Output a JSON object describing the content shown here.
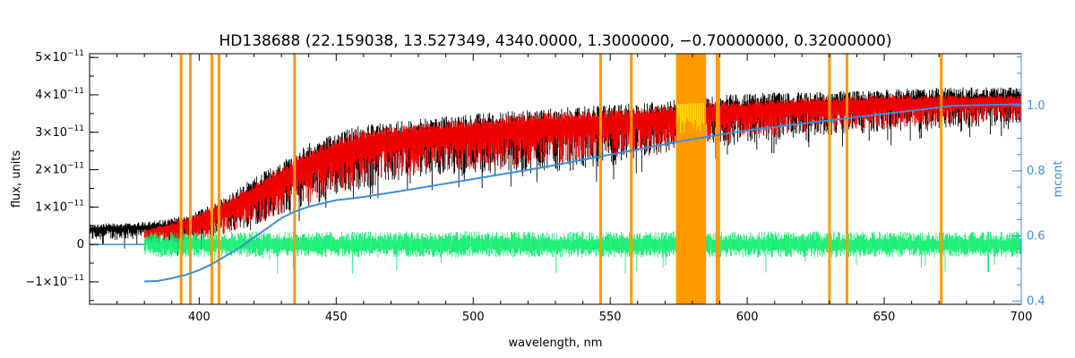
{
  "chart_data": {
    "type": "line",
    "title": "HD138688    (22.159038, 13.527349, 4340.0000, 1.3000000, −0.70000000, 0.32000000)",
    "xlabel": "wavelength, nm",
    "ylabel": "flux, units",
    "y2label": "mcont",
    "xlim": [
      360,
      700
    ],
    "ylim": [
      -1.6e-11,
      5.1e-11
    ],
    "y2lim": [
      0.39,
      1.16
    ],
    "x_ticks": [
      400,
      450,
      500,
      550,
      600,
      650,
      700
    ],
    "x_tick_labels": [
      "400",
      "450",
      "500",
      "550",
      "600",
      "650",
      "700"
    ],
    "y_ticks": [
      -1e-11,
      0,
      1e-11,
      2e-11,
      3e-11,
      4e-11,
      5e-11
    ],
    "y_tick_labels": [
      {
        "base": "−1×10",
        "exp": "−11"
      },
      {
        "base": "0",
        "exp": ""
      },
      {
        "base": "1×10",
        "exp": "−11"
      },
      {
        "base": "2×10",
        "exp": "−11"
      },
      {
        "base": "3×10",
        "exp": "−11"
      },
      {
        "base": "4×10",
        "exp": "−11"
      },
      {
        "base": "5×10",
        "exp": "−11"
      }
    ],
    "y2_ticks": [
      0.4,
      0.6,
      0.8,
      1.0
    ],
    "y2_tick_labels": [
      "0.4",
      "0.6",
      "0.8",
      "1.0"
    ],
    "colors": {
      "observed": "#000000",
      "model": "#ff0000",
      "residual": "#00ee66",
      "continuum": "#3b8fd8",
      "mask": "#ff9900",
      "highlight": "#ffff00"
    },
    "mask_lines": [
      393.4,
      396.8,
      404.6,
      407.2,
      434.8,
      546.5,
      557.7,
      588.99,
      589.59,
      630.0,
      636.4,
      670.8
    ],
    "mask_band": [
      574,
      585
    ],
    "observed_envelope": {
      "x": [
        360,
        380,
        390,
        400,
        410,
        420,
        430,
        440,
        450,
        460,
        480,
        500,
        520,
        550,
        575,
        600,
        625,
        650,
        675,
        700
      ],
      "upper": [
        5.5e-12,
        6e-12,
        7e-12,
        9e-12,
        1.3e-11,
        1.8e-11,
        2.2e-11,
        2.7e-11,
        3e-11,
        3.2e-11,
        3.35e-11,
        3.5e-11,
        3.6e-11,
        3.75e-11,
        3.9e-11,
        4.05e-11,
        4.1e-11,
        4.15e-11,
        4.2e-11,
        4.2e-11
      ],
      "lower": [
        1e-12,
        1.5e-12,
        5e-13,
        1e-12,
        3e-12,
        5e-12,
        8e-12,
        1e-11,
        1.3e-11,
        1.5e-11,
        1.8e-11,
        1.9e-11,
        1.9e-11,
        2.1e-11,
        2.5e-11,
        2.7e-11,
        2.9e-11,
        3e-11,
        3.1e-11,
        3.2e-11
      ]
    },
    "model_envelope": {
      "x": [
        380,
        390,
        400,
        410,
        420,
        430,
        440,
        450,
        460,
        480,
        500,
        520,
        550,
        575,
        600,
        625,
        650,
        675,
        700
      ],
      "upper": [
        4e-12,
        6e-12,
        8.5e-12,
        1.2e-11,
        1.6e-11,
        2.1e-11,
        2.55e-11,
        2.85e-11,
        3.05e-11,
        3.25e-11,
        3.35e-11,
        3.5e-11,
        3.6e-11,
        3.75e-11,
        3.85e-11,
        3.95e-11,
        4e-11,
        4e-11,
        4e-11
      ],
      "lower": [
        5e-13,
        5e-13,
        1e-12,
        3e-12,
        5e-12,
        8e-12,
        1.1e-11,
        1.4e-11,
        1.6e-11,
        1.9e-11,
        2e-11,
        2.1e-11,
        2.3e-11,
        2.6e-11,
        2.8e-11,
        3e-11,
        3.1e-11,
        3.2e-11,
        3.3e-11
      ]
    },
    "residual_band": {
      "x_start": 380,
      "x_end": 700,
      "center": 0,
      "upper": 3.5e-12,
      "lower": -3.5e-12
    },
    "continuum": {
      "x": [
        380,
        385,
        390,
        395,
        400,
        405,
        410,
        415,
        420,
        425,
        430,
        435,
        440,
        445,
        450,
        460,
        475,
        500,
        525,
        550,
        575,
        600,
        625,
        650,
        675,
        700
      ],
      "mcont": [
        0.46,
        0.462,
        0.47,
        0.48,
        0.495,
        0.515,
        0.54,
        0.565,
        0.595,
        0.625,
        0.655,
        0.675,
        0.69,
        0.7,
        0.71,
        0.72,
        0.74,
        0.775,
        0.81,
        0.85,
        0.89,
        0.925,
        0.95,
        0.975,
        1.0,
        1.005
      ]
    }
  }
}
